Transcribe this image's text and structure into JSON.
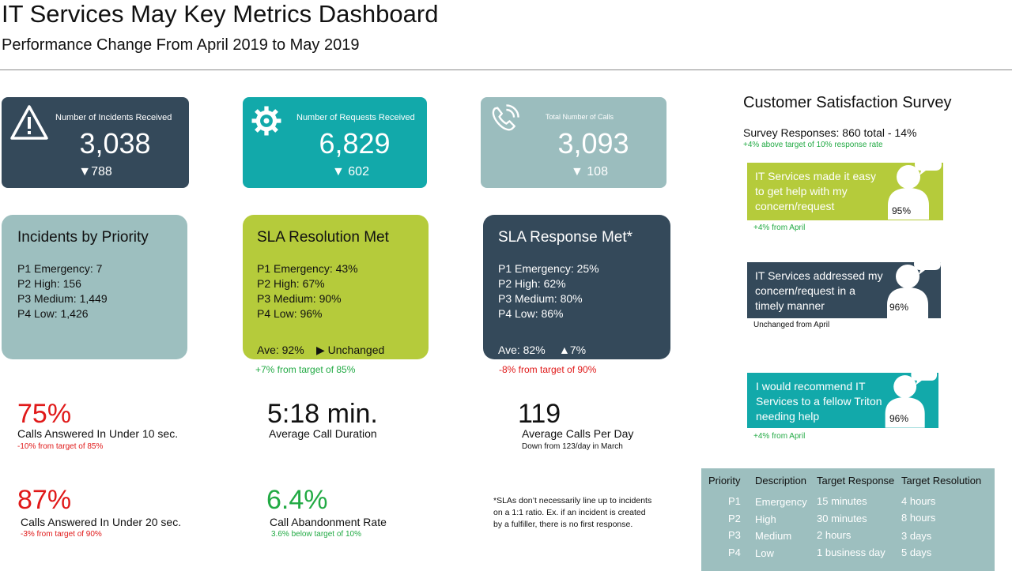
{
  "header": {
    "title": "IT Services May Key Metrics Dashboard",
    "subtitle": "Performance Change From April 2019 to May 2019"
  },
  "kpis": {
    "incidents": {
      "label": "Number of Incidents Received",
      "value": "3,038",
      "change": "▼788",
      "icon": "warning-icon",
      "color": "#34495a"
    },
    "requests": {
      "label": "Number of Requests Received",
      "value": "6,829",
      "change": "▼ 602",
      "icon": "gear-icon",
      "color": "#12a9aa"
    },
    "calls": {
      "label": "Total Number of Calls",
      "value": "3,093",
      "change": "▼ 108",
      "icon": "phone-icon",
      "color": "#9bbdbe"
    }
  },
  "incidents_priority": {
    "title": "Incidents by Priority",
    "lines": [
      "P1 Emergency: 7",
      "P2 High: 156",
      "P3 Medium: 1,449",
      "P4 Low: 1,426"
    ]
  },
  "sla_resolution": {
    "title": "SLA Resolution Met",
    "lines": [
      "P1 Emergency: 43%",
      "P2 High: 67%",
      "P3 Medium: 90%",
      "P4 Low: 96%"
    ],
    "ave": "Ave: 92%",
    "trend": "▶ Unchanged",
    "note": "+7% from target of 85%"
  },
  "sla_response": {
    "title": "SLA Response Met*",
    "lines": [
      "P1 Emergency: 25%",
      "P2 High: 62%",
      "P3 Medium: 80%",
      "P4 Low: 86%"
    ],
    "ave": "Ave: 82%",
    "trend": "▲7%",
    "note": "-8% from target of 90%"
  },
  "metrics": {
    "calls10": {
      "value": "75%",
      "label": "Calls Answered In Under 10 sec.",
      "sub": "-10% from target of 85%"
    },
    "duration": {
      "value": "5:18 min.",
      "label": "Average Call Duration"
    },
    "perday": {
      "value": "119",
      "label": "Average Calls Per Day",
      "sub": "Down from 123/day in March"
    },
    "calls20": {
      "value": "87%",
      "label": "Calls Answered In Under 20 sec.",
      "sub": "-3% from target of 90%"
    },
    "abandon": {
      "value": "6.4%",
      "label": "Call Abandonment Rate",
      "sub": "3.6% below target of 10%"
    }
  },
  "footnote": [
    "*SLAs don’t necessarily line up to incidents",
    "on a 1:1 ratio. Ex. if an incident is created",
    "by a fulfiller, there is no first response."
  ],
  "survey": {
    "title": "Customer Satisfaction Survey",
    "responses": "Survey Responses: 860 total - 14%",
    "responses_note": "+4% above target of 10% response rate",
    "items": [
      {
        "text": "IT Services made it easy to get help with my concern/request",
        "pct": "95%",
        "note": "+4% from April",
        "color": "#b5cb3b"
      },
      {
        "text": "IT Services addressed my concern/request in a timely manner",
        "pct": "96%",
        "note": "Unchanged from April",
        "color": "#34495a"
      },
      {
        "text": "I would recommend IT Services to a fellow Triton needing help",
        "pct": "96%",
        "note": "+4% from April",
        "color": "#12a9aa"
      }
    ]
  },
  "priority_table": {
    "headers": [
      "Priority",
      "Description",
      "Target Response",
      "Target Resolution"
    ],
    "rows": [
      [
        "P1",
        "Emergency",
        "15 minutes",
        "4 hours"
      ],
      [
        "P2",
        "High",
        "30 minutes",
        "8 hours"
      ],
      [
        "P3",
        "Medium",
        "2 hours",
        "3 days"
      ],
      [
        "P4",
        "Low",
        "1 business day",
        "5 days"
      ]
    ]
  },
  "colors": {
    "dark": "#34495a",
    "teal": "#12a9aa",
    "lightteal": "#9bbdbe",
    "lime": "#b5cb3b",
    "red": "#e01919",
    "green": "#22aa44"
  }
}
